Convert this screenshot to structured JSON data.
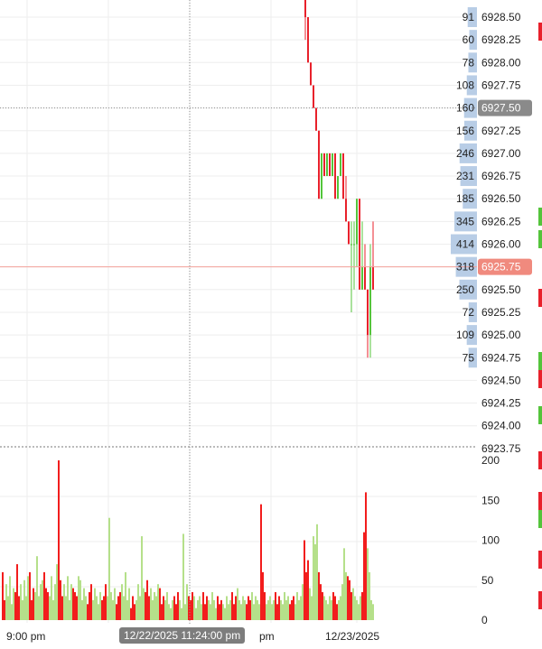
{
  "chart_data": {
    "type": "candlestick-with-volume-profile",
    "price_axis": {
      "ticks": [
        "6928.50",
        "6928.25",
        "6928.00",
        "6927.75",
        "6927.50",
        "6927.25",
        "6927.00",
        "6926.75",
        "6926.50",
        "6926.25",
        "6926.00",
        "6925.75",
        "6925.50",
        "6925.25",
        "6925.00",
        "6924.75",
        "6924.50",
        "6924.25",
        "6924.00",
        "6923.75"
      ],
      "tick_values": [
        6928.5,
        6928.25,
        6928.0,
        6927.75,
        6927.5,
        6927.25,
        6927.0,
        6926.75,
        6926.5,
        6926.25,
        6926.0,
        6925.75,
        6925.5,
        6925.25,
        6925.0,
        6924.75,
        6924.5,
        6924.25,
        6924.0,
        6923.75
      ]
    },
    "volume_profile": {
      "prices": [
        6928.5,
        6928.25,
        6928.0,
        6927.75,
        6927.5,
        6927.25,
        6927.0,
        6926.75,
        6926.5,
        6926.25,
        6926.0,
        6925.75,
        6925.5,
        6925.25,
        6925.0,
        6924.75
      ],
      "values": [
        91,
        60,
        78,
        108,
        160,
        156,
        246,
        231,
        185,
        345,
        414,
        318,
        250,
        72,
        109,
        75
      ]
    },
    "price_markers": [
      {
        "price": 6927.5,
        "label": "6927.50",
        "color": "#8a8a8a"
      },
      {
        "price": 6925.75,
        "label": "6925.75",
        "color": "#f08a7e"
      }
    ],
    "candles": [
      [
        6928.75,
        6928.75,
        6928.25,
        6928.5
      ],
      [
        6928.5,
        6928.5,
        6928.0,
        6928.0
      ],
      [
        6928.0,
        6928.0,
        6927.75,
        6927.75
      ],
      [
        6927.75,
        6927.75,
        6927.5,
        6927.5
      ],
      [
        6927.5,
        6927.5,
        6927.25,
        6927.25
      ],
      [
        6927.25,
        6927.25,
        6926.5,
        6926.5
      ],
      [
        6926.5,
        6927.0,
        6926.5,
        6927.0
      ],
      [
        6927.0,
        6927.0,
        6926.75,
        6926.75
      ],
      [
        6926.75,
        6927.0,
        6926.75,
        6927.0
      ],
      [
        6927.0,
        6927.0,
        6926.75,
        6926.75
      ],
      [
        6926.75,
        6927.0,
        6926.75,
        6927.0
      ],
      [
        6927.0,
        6927.0,
        6926.5,
        6926.5
      ],
      [
        6926.5,
        6926.75,
        6926.5,
        6926.75
      ],
      [
        6926.75,
        6927.0,
        6926.75,
        6927.0
      ],
      [
        6927.0,
        6927.0,
        6926.5,
        6926.5
      ],
      [
        6926.5,
        6926.75,
        6926.25,
        6926.25
      ],
      [
        6926.25,
        6926.25,
        6926.0,
        6926.0
      ],
      [
        6926.0,
        6926.25,
        6925.25,
        6926.0
      ],
      [
        6926.0,
        6926.25,
        6925.5,
        6926.0
      ],
      [
        6926.0,
        6926.5,
        6925.75,
        6926.5
      ],
      [
        6926.5,
        6926.5,
        6925.5,
        6925.5
      ],
      [
        6925.5,
        6926.25,
        6925.5,
        6925.75
      ],
      [
        6925.75,
        6926.0,
        6925.5,
        6925.5
      ],
      [
        6925.5,
        6925.5,
        6924.75,
        6925.0
      ],
      [
        6925.0,
        6926.0,
        6924.75,
        6925.75
      ],
      [
        6925.75,
        6926.25,
        6925.5,
        6925.5
      ]
    ],
    "volume_axis": {
      "ticks": [
        "200",
        "150",
        "100",
        "50",
        "0"
      ],
      "tick_values": [
        200,
        150,
        100,
        50,
        0
      ],
      "range": [
        0,
        200
      ]
    },
    "volume": [
      60,
      25,
      45,
      30,
      55,
      20,
      40,
      35,
      70,
      30,
      45,
      25,
      50,
      30,
      55,
      60,
      25,
      40,
      35,
      80,
      30,
      45,
      50,
      60,
      40,
      35,
      30,
      55,
      25,
      45,
      70,
      200,
      50,
      30,
      45,
      30,
      55,
      25,
      45,
      40,
      35,
      30,
      55,
      50,
      25,
      40,
      30,
      20,
      35,
      45,
      25,
      40,
      30,
      20,
      35,
      25,
      30,
      45,
      30,
      128,
      35,
      25,
      40,
      20,
      30,
      35,
      45,
      30,
      60,
      25,
      40,
      15,
      30,
      20,
      25,
      45,
      30,
      105,
      40,
      35,
      50,
      30,
      40,
      25,
      35,
      30,
      45,
      40,
      20,
      30,
      25,
      35,
      20,
      15,
      25,
      30,
      20,
      35,
      25,
      15,
      108,
      20,
      45,
      30,
      25,
      35,
      30,
      15,
      25,
      30,
      20,
      35,
      20,
      30,
      25,
      20,
      35,
      25,
      15,
      30,
      20,
      25,
      20,
      15,
      30,
      20,
      25,
      35,
      20,
      30,
      40,
      25,
      20,
      30,
      25,
      20,
      30,
      25,
      35,
      20,
      30,
      25,
      20,
      145,
      60,
      35,
      20,
      25,
      30,
      20,
      25,
      35,
      20,
      30,
      25,
      20,
      35,
      25,
      30,
      20,
      25,
      30,
      20,
      35,
      25,
      30,
      45,
      100,
      60,
      75,
      40,
      30,
      105,
      95,
      120,
      60,
      45,
      35,
      30,
      25,
      20,
      30,
      25,
      35,
      30,
      20,
      25,
      30,
      45,
      90,
      60,
      55,
      50,
      35,
      40,
      30,
      25,
      20,
      30,
      35,
      110,
      160,
      90,
      60,
      25,
      20
    ],
    "volume_colors_pattern": [
      "#f21d1d",
      "#b5e08a",
      "#b5e08a",
      "#f21d1d",
      "#b5e08a",
      "#f21d1d",
      "#b5e08a",
      "#b5e08a"
    ],
    "x_axis": {
      "ticks": [
        "9:00 pm",
        "12/23/2025"
      ],
      "partial_tick": "pm"
    },
    "crosshair": {
      "price_label": "6927.50",
      "time_label": "12/22/2025 11:24:00 pm"
    },
    "grid": true
  },
  "colors": {
    "up": "#54c43b",
    "down": "#e8212b",
    "vol_up": "#b5e08a",
    "vol_down": "#f21d1d",
    "profile_bar": "#b8cde6",
    "grid": "#eeeeee",
    "crosshair": "#8e8e8e",
    "last_price_line": "#f3a19a"
  }
}
